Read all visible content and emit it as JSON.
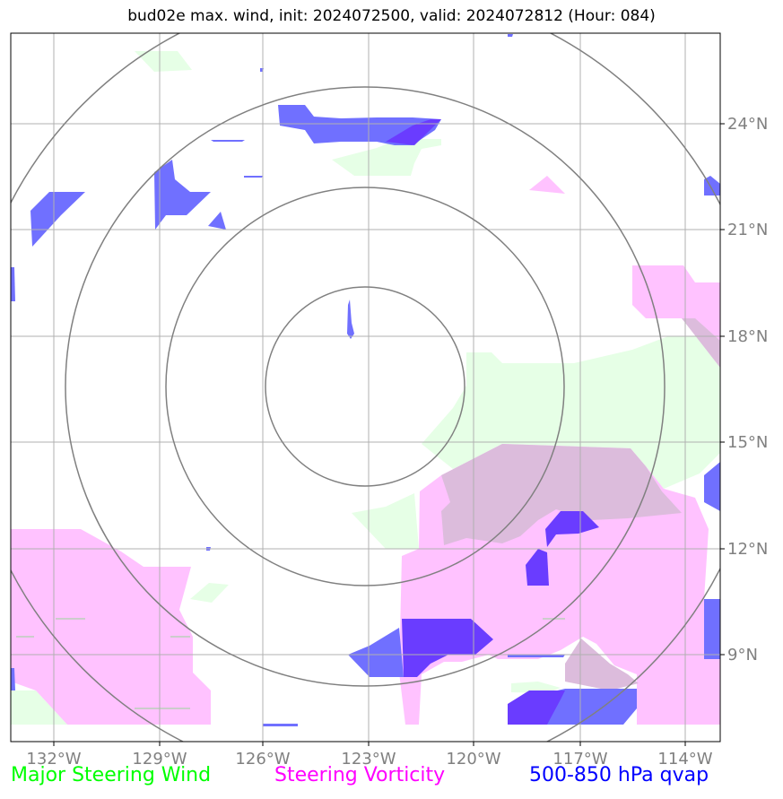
{
  "title": "bud02e max. wind, init: 2024072500, valid: 2024072812 (Hour: 084)",
  "map": {
    "lon_labels": [
      "132°W",
      "129°W",
      "126°W",
      "123°W",
      "120°W",
      "117°W",
      "114°W"
    ],
    "lat_labels": [
      "24°N",
      "21°N",
      "18°N",
      "15°N",
      "12°N",
      "9°N"
    ],
    "range_rings": 4
  },
  "legend": {
    "wind": {
      "label": "Major Steering Wind",
      "color": "#00ff00"
    },
    "vorticity": {
      "label": "Steering Vorticity",
      "color": "#ff00ff"
    },
    "qvap": {
      "label": "500-850 hPa qvap",
      "color": "#0000ff"
    }
  },
  "colors": {
    "wind_fill": "#e6ffe6",
    "vort_fill": "#ffc2ff",
    "overlap_fill": "#dcbcdc",
    "qvap_fill": "#7070ff",
    "qvap_dark": "#6a3cff",
    "grid": "#b0b0b0",
    "ring": "#808080",
    "tick_label": "#808080"
  }
}
